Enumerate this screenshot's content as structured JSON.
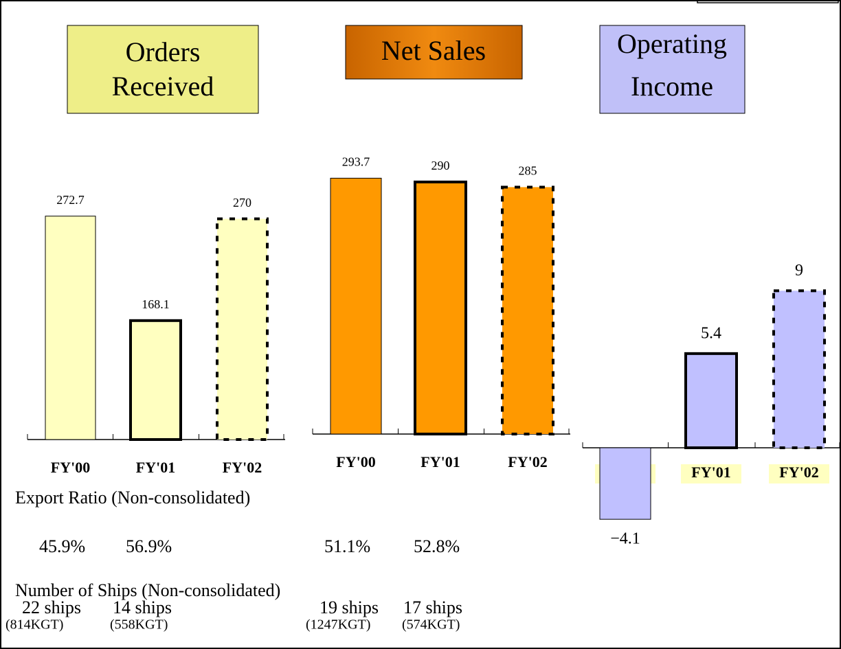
{
  "chart_data": [
    {
      "type": "bar",
      "title": "Orders Received",
      "categories": [
        "FY'00",
        "FY'01",
        "FY'02"
      ],
      "values": [
        272.7,
        168.1,
        270
      ],
      "color": "#ffffc0",
      "ylim": [
        49,
        300
      ]
    },
    {
      "type": "bar",
      "title": "Net Sales",
      "categories": [
        "FY'00",
        "FY'01",
        "FY'02"
      ],
      "values": [
        293.7,
        290,
        285
      ],
      "color": "#ff9900",
      "ylim": [
        45,
        300
      ]
    },
    {
      "type": "bar",
      "title": "Operating Income",
      "categories": [
        "FY'00",
        "FY'01",
        "FY'02"
      ],
      "values": [
        -4.1,
        5.4,
        9
      ],
      "value_labels": [
        "−4.1",
        "5.4",
        "9"
      ],
      "color": "#c0c0ff",
      "ylim": [
        -5,
        10
      ]
    }
  ],
  "export_ratio": {
    "title": "Export Ratio (Non-consolidated)",
    "values": [
      "45.9%",
      "56.9%",
      "51.1%",
      "52.8%"
    ]
  },
  "ships": {
    "title": "Number of Ships (Non-consolidated)",
    "items": [
      {
        "count": "22 ships",
        "tonnage": "(814KGT)"
      },
      {
        "count": "14 ships",
        "tonnage": "(558KGT)"
      },
      {
        "count": "19 ships",
        "tonnage": "(1247KGT)"
      },
      {
        "count": "17 ships",
        "tonnage": "(574KGT)"
      }
    ]
  }
}
